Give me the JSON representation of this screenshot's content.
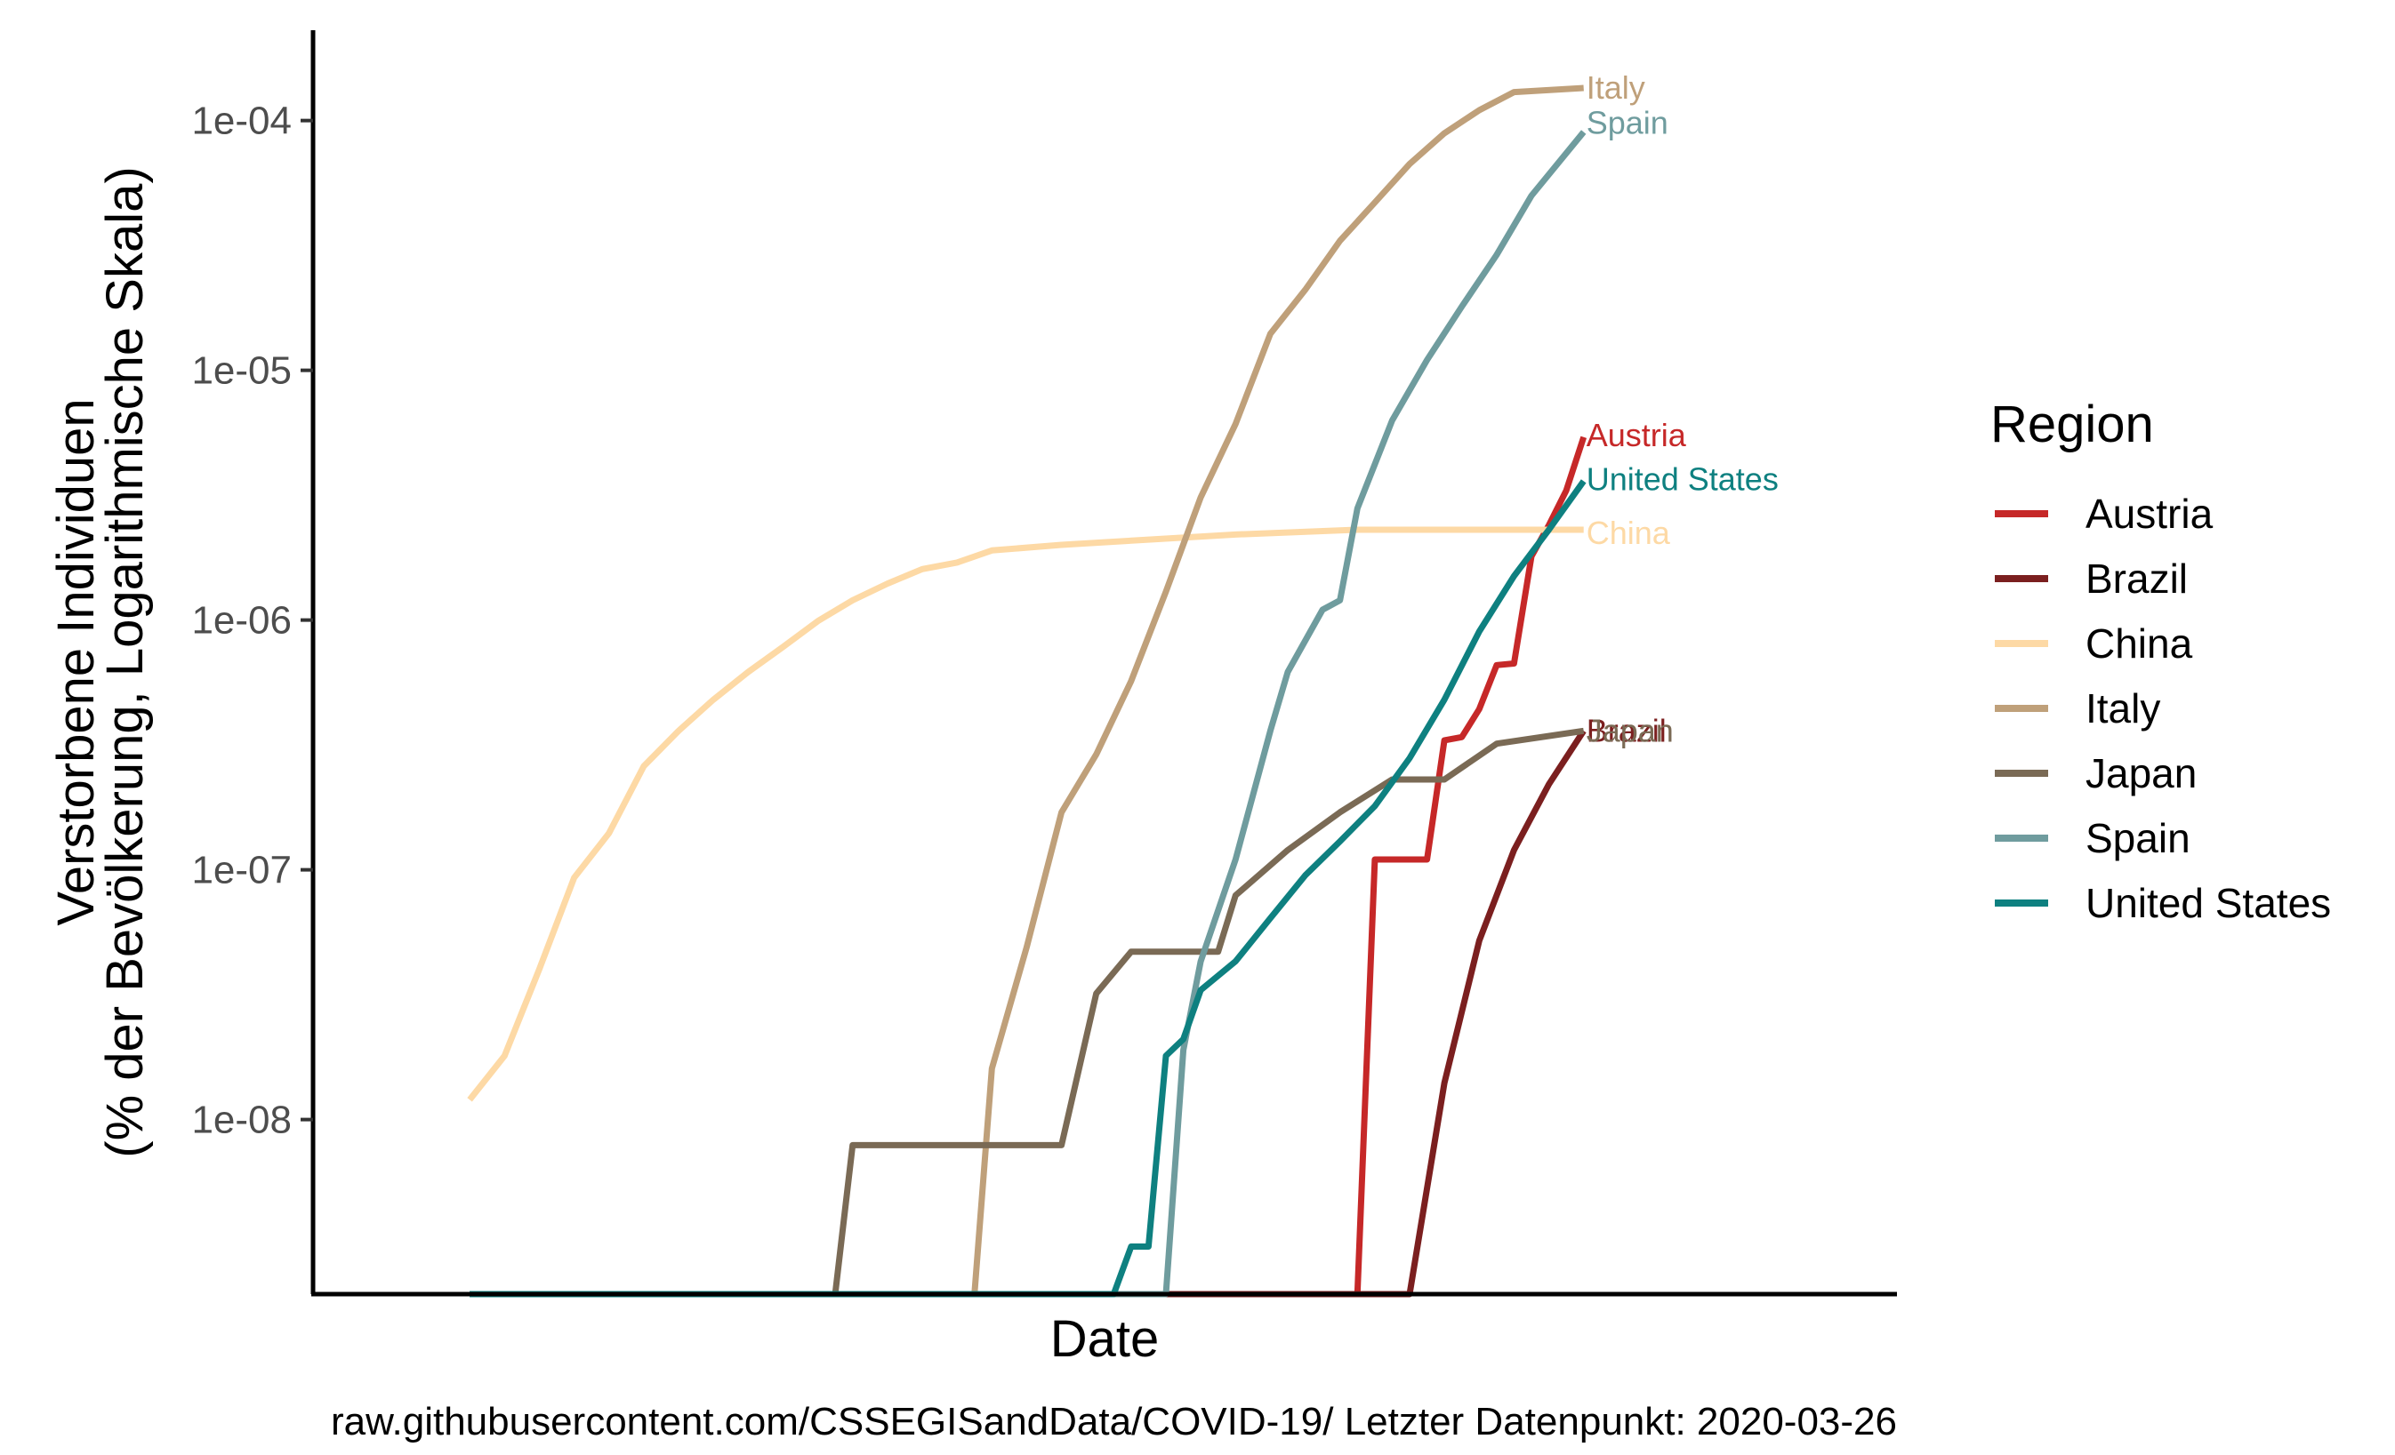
{
  "chart_data": {
    "type": "line",
    "y_scale": "log10",
    "ylim": [
      "2e-09",
      "2.3e-04"
    ],
    "xlim": [
      "2020-01-13",
      "2020-04-13"
    ],
    "xlabel": "Date",
    "ylabel_line1": "Verstorbene Individuen",
    "ylabel_line2": "(% der Bevölkerung, Logarithmische Skala)",
    "y_ticks": [
      "1e-08",
      "1e-07",
      "1e-06",
      "1e-05",
      "1e-04"
    ],
    "y_tick_values": [
      1e-08,
      1e-07,
      1e-06,
      1e-05,
      0.0001
    ],
    "grid": false,
    "legend_position": "right",
    "legend_title": "Region",
    "caption": "raw.githubusercontent.com/CSSEGISandData/COVID-19/ Letzter Datenpunkt:  2020-03-26",
    "series": [
      {
        "name": "Austria",
        "color": "#C62828",
        "values": [
          [
            "2020-01-22",
            2e-09
          ],
          [
            "2020-03-13",
            2e-09
          ],
          [
            "2020-03-14",
            1.1e-07
          ],
          [
            "2020-03-17",
            1.1e-07
          ],
          [
            "2020-03-18",
            3.3e-07
          ],
          [
            "2020-03-19",
            3.4e-07
          ],
          [
            "2020-03-20",
            4.4e-07
          ],
          [
            "2020-03-21",
            6.6e-07
          ],
          [
            "2020-03-22",
            6.7e-07
          ],
          [
            "2020-03-23",
            1.8e-06
          ],
          [
            "2020-03-24",
            2.4e-06
          ],
          [
            "2020-03-25",
            3.3e-06
          ],
          [
            "2020-03-26",
            5.4e-06
          ]
        ]
      },
      {
        "name": "Brazil",
        "color": "#7B1F1F",
        "values": [
          [
            "2020-01-22",
            2e-09
          ],
          [
            "2020-03-16",
            2e-09
          ],
          [
            "2020-03-18",
            1.4e-08
          ],
          [
            "2020-03-20",
            5.2e-08
          ],
          [
            "2020-03-22",
            1.2e-07
          ],
          [
            "2020-03-24",
            2.2e-07
          ],
          [
            "2020-03-26",
            3.6e-07
          ]
        ]
      },
      {
        "name": "China",
        "color": "#FDD9A5",
        "values": [
          [
            "2020-01-22",
            1.2e-08
          ],
          [
            "2020-01-24",
            1.8e-08
          ],
          [
            "2020-01-26",
            4e-08
          ],
          [
            "2020-01-28",
            9.3e-08
          ],
          [
            "2020-01-30",
            1.4e-07
          ],
          [
            "2020-02-01",
            2.6e-07
          ],
          [
            "2020-02-03",
            3.6e-07
          ],
          [
            "2020-02-05",
            4.8e-07
          ],
          [
            "2020-02-07",
            6.2e-07
          ],
          [
            "2020-02-09",
            7.8e-07
          ],
          [
            "2020-02-11",
            9.9e-07
          ],
          [
            "2020-02-13",
            1.2e-06
          ],
          [
            "2020-02-15",
            1.4e-06
          ],
          [
            "2020-02-17",
            1.6e-06
          ],
          [
            "2020-02-19",
            1.7e-06
          ],
          [
            "2020-02-21",
            1.9e-06
          ],
          [
            "2020-02-25",
            2e-06
          ],
          [
            "2020-03-01",
            2.1e-06
          ],
          [
            "2020-03-06",
            2.2e-06
          ],
          [
            "2020-03-13",
            2.3e-06
          ],
          [
            "2020-03-26",
            2.3e-06
          ]
        ]
      },
      {
        "name": "Italy",
        "color": "#BFA07A",
        "values": [
          [
            "2020-01-22",
            2e-09
          ],
          [
            "2020-02-20",
            2e-09
          ],
          [
            "2020-02-21",
            1.6e-08
          ],
          [
            "2020-02-23",
            4.9e-08
          ],
          [
            "2020-02-25",
            1.7e-07
          ],
          [
            "2020-02-27",
            2.9e-07
          ],
          [
            "2020-02-29",
            5.7e-07
          ],
          [
            "2020-03-02",
            1.3e-06
          ],
          [
            "2020-03-04",
            3.1e-06
          ],
          [
            "2020-03-06",
            6.1e-06
          ],
          [
            "2020-03-08",
            1.4e-05
          ],
          [
            "2020-03-10",
            2.1e-05
          ],
          [
            "2020-03-12",
            3.3e-05
          ],
          [
            "2020-03-14",
            4.7e-05
          ],
          [
            "2020-03-16",
            6.7e-05
          ],
          [
            "2020-03-18",
            8.9e-05
          ],
          [
            "2020-03-20",
            0.00011
          ],
          [
            "2020-03-22",
            0.00013
          ],
          [
            "2020-03-26",
            0.000135
          ]
        ]
      },
      {
        "name": "Japan",
        "color": "#7A6A55",
        "values": [
          [
            "2020-01-22",
            2e-09
          ],
          [
            "2020-02-12",
            2e-09
          ],
          [
            "2020-02-13",
            7.9e-09
          ],
          [
            "2020-02-25",
            7.9e-09
          ],
          [
            "2020-02-27",
            3.2e-08
          ],
          [
            "2020-02-29",
            4.7e-08
          ],
          [
            "2020-03-05",
            4.7e-08
          ],
          [
            "2020-03-06",
            7.9e-08
          ],
          [
            "2020-03-09",
            1.2e-07
          ],
          [
            "2020-03-12",
            1.7e-07
          ],
          [
            "2020-03-15",
            2.3e-07
          ],
          [
            "2020-03-18",
            2.3e-07
          ],
          [
            "2020-03-21",
            3.2e-07
          ],
          [
            "2020-03-26",
            3.6e-07
          ]
        ]
      },
      {
        "name": "Spain",
        "color": "#6F9C9E",
        "values": [
          [
            "2020-01-22",
            2e-09
          ],
          [
            "2020-03-02",
            2e-09
          ],
          [
            "2020-03-03",
            1.9e-08
          ],
          [
            "2020-03-04",
            4.3e-08
          ],
          [
            "2020-03-06",
            1.1e-07
          ],
          [
            "2020-03-08",
            3.6e-07
          ],
          [
            "2020-03-09",
            6.2e-07
          ],
          [
            "2020-03-11",
            1.1e-06
          ],
          [
            "2020-03-12",
            1.2e-06
          ],
          [
            "2020-03-13",
            2.8e-06
          ],
          [
            "2020-03-15",
            6.3e-06
          ],
          [
            "2020-03-17",
            1.1e-05
          ],
          [
            "2020-03-19",
            1.8e-05
          ],
          [
            "2020-03-21",
            2.9e-05
          ],
          [
            "2020-03-23",
            5e-05
          ],
          [
            "2020-03-26",
            9e-05
          ]
        ]
      },
      {
        "name": "United States",
        "color": "#0E8080",
        "values": [
          [
            "2020-01-22",
            2e-09
          ],
          [
            "2020-02-28",
            2e-09
          ],
          [
            "2020-02-29",
            3.1e-09
          ],
          [
            "2020-03-01",
            3.1e-09
          ],
          [
            "2020-03-02",
            1.8e-08
          ],
          [
            "2020-03-03",
            2.1e-08
          ],
          [
            "2020-03-04",
            3.3e-08
          ],
          [
            "2020-03-06",
            4.3e-08
          ],
          [
            "2020-03-08",
            6.4e-08
          ],
          [
            "2020-03-10",
            9.5e-08
          ],
          [
            "2020-03-12",
            1.3e-07
          ],
          [
            "2020-03-14",
            1.8e-07
          ],
          [
            "2020-03-16",
            2.8e-07
          ],
          [
            "2020-03-18",
            4.8e-07
          ],
          [
            "2020-03-20",
            9e-07
          ],
          [
            "2020-03-22",
            1.5e-06
          ],
          [
            "2020-03-24",
            2.3e-06
          ],
          [
            "2020-03-26",
            3.6e-06
          ]
        ]
      }
    ]
  }
}
